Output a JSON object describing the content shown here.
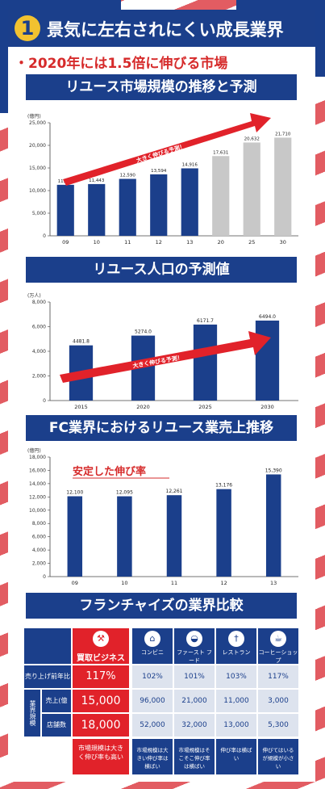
{
  "header": {
    "number": "1",
    "title": "景気に左右されにくい成長業界"
  },
  "subtitle": "・2020年には1.5倍に伸びる市場",
  "colors": {
    "navy": "#1b3f8b",
    "red": "#e1222a",
    "gray": "#c8c8c8",
    "cell": "#dde3ee"
  },
  "sections": {
    "s1": "リユース市場規模の推移と予測",
    "s2": "リユース人口の予測値",
    "s3": "FC業界におけるリユース業売上推移",
    "s4": "フランチャイズの業界比較"
  },
  "chart_data": [
    {
      "type": "bar",
      "title": "リユース市場規模の推移と予測",
      "unit": "(億円)",
      "categories": [
        "09",
        "10",
        "11",
        "12",
        "13",
        "20",
        "25",
        "30"
      ],
      "values": [
        11274,
        11443,
        12590,
        13594,
        14916,
        17631,
        20632,
        21710
      ],
      "value_labels": [
        "11,274",
        "11,443",
        "12,590",
        "13,594",
        "14,916",
        "17,631",
        "20,632",
        "21,710"
      ],
      "forecast_from_index": 5,
      "ylim": [
        0,
        25000
      ],
      "yticks": [
        "0",
        "5,000",
        "10,000",
        "15,000",
        "20,000",
        "25,000"
      ],
      "annotation": "大きく伸びる予測！",
      "grid": false
    },
    {
      "type": "bar",
      "title": "リユース人口の予測値",
      "unit": "(万人)",
      "categories": [
        "2015",
        "2020",
        "2025",
        "2030"
      ],
      "values": [
        4481.8,
        5274.0,
        6171.7,
        6494.0
      ],
      "value_labels": [
        "4481.8",
        "5274.0",
        "6171.7",
        "6494.0"
      ],
      "ylim": [
        0,
        8000
      ],
      "yticks": [
        "0",
        "2,000",
        "4,000",
        "6,000",
        "8,000"
      ],
      "annotation": "大きく伸びる予測！",
      "grid": false
    },
    {
      "type": "bar",
      "title": "FC業界におけるリユース業売上推移",
      "unit": "(億円)",
      "categories": [
        "09",
        "10",
        "11",
        "12",
        "13"
      ],
      "values": [
        12100,
        12095,
        12261,
        13176,
        15390
      ],
      "value_labels": [
        "12,100",
        "12,095",
        "12,261",
        "13,176",
        "15,390"
      ],
      "ylim": [
        0,
        18000
      ],
      "yticks": [
        "0",
        "2,000",
        "4,000",
        "6,000",
        "8,000",
        "10,000",
        "12,000",
        "14,000",
        "16,000",
        "18,000"
      ],
      "annotation": "安定した伸び率",
      "grid": false
    }
  ],
  "comparison": {
    "featured": {
      "name": "買取ビジネス",
      "growth": "117%",
      "sales": "15,000",
      "stores": "18,000",
      "note": "市場規模は大きく伸び率も高い"
    },
    "row_labels": {
      "growth": "売り上げ前年比",
      "group": "業界規模",
      "sales": "売上(億円)",
      "stores": "店舗数"
    },
    "columns": [
      {
        "name": "コンビニ",
        "icon": "store-icon",
        "growth": "102%",
        "sales": "96,000",
        "stores": "52,000",
        "note": "市場規模は大きい伸び率は横ばい"
      },
      {
        "name": "ファースト フード",
        "icon": "burger-icon",
        "growth": "101%",
        "sales": "21,000",
        "stores": "32,000",
        "note": "市場規模はそこそこ伸び率は横ばい"
      },
      {
        "name": "レストラン",
        "icon": "fork-knife-icon",
        "growth": "103%",
        "sales": "11,000",
        "stores": "13,000",
        "note": "伸び率は横ばい"
      },
      {
        "name": "コーヒーショップ",
        "icon": "coffee-icon",
        "growth": "117%",
        "sales": "3,000",
        "stores": "5,300",
        "note": "伸びてはいるが規模が小さい"
      }
    ]
  }
}
